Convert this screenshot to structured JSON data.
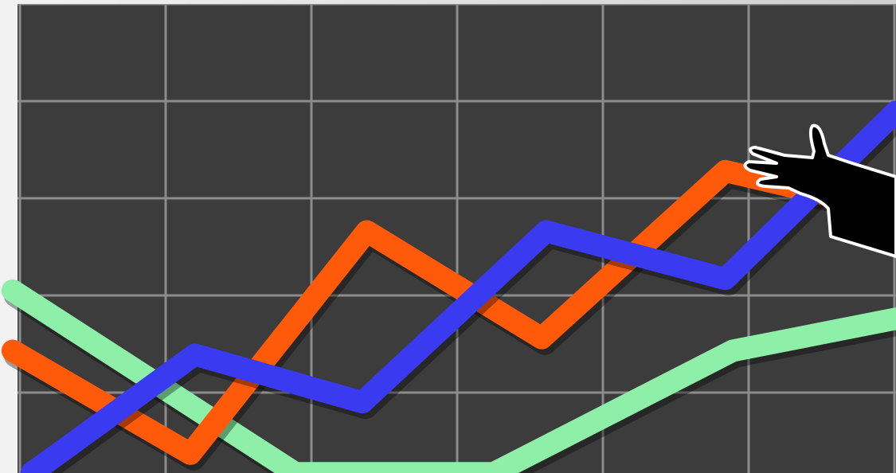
{
  "chart_data": {
    "type": "line",
    "xlim": [
      0,
      6
    ],
    "ylim": [
      0,
      5
    ],
    "xticks": [
      0,
      1,
      2,
      3,
      4,
      5,
      6
    ],
    "yticks": [
      0,
      1,
      2,
      3,
      4,
      5
    ],
    "grid": true,
    "series": [
      {
        "color": "#8ef0a8",
        "x": [
          -0.05,
          1.89,
          3.25,
          4.89,
          6.01
        ],
        "values": [
          2.05,
          0.17,
          0.17,
          1.43,
          1.76
        ]
      },
      {
        "color": "#ff5a0a",
        "x": [
          -0.05,
          1.17,
          2.38,
          3.58,
          4.84,
          5.55
        ],
        "values": [
          1.43,
          0.37,
          2.66,
          1.56,
          3.28,
          3.03
        ]
      },
      {
        "color": "#3a3af0",
        "x": [
          0.08,
          1.2,
          2.35,
          3.61,
          4.84,
          6.01
        ],
        "values": [
          0.17,
          1.39,
          0.9,
          2.66,
          2.17,
          3.89
        ]
      }
    ]
  }
}
